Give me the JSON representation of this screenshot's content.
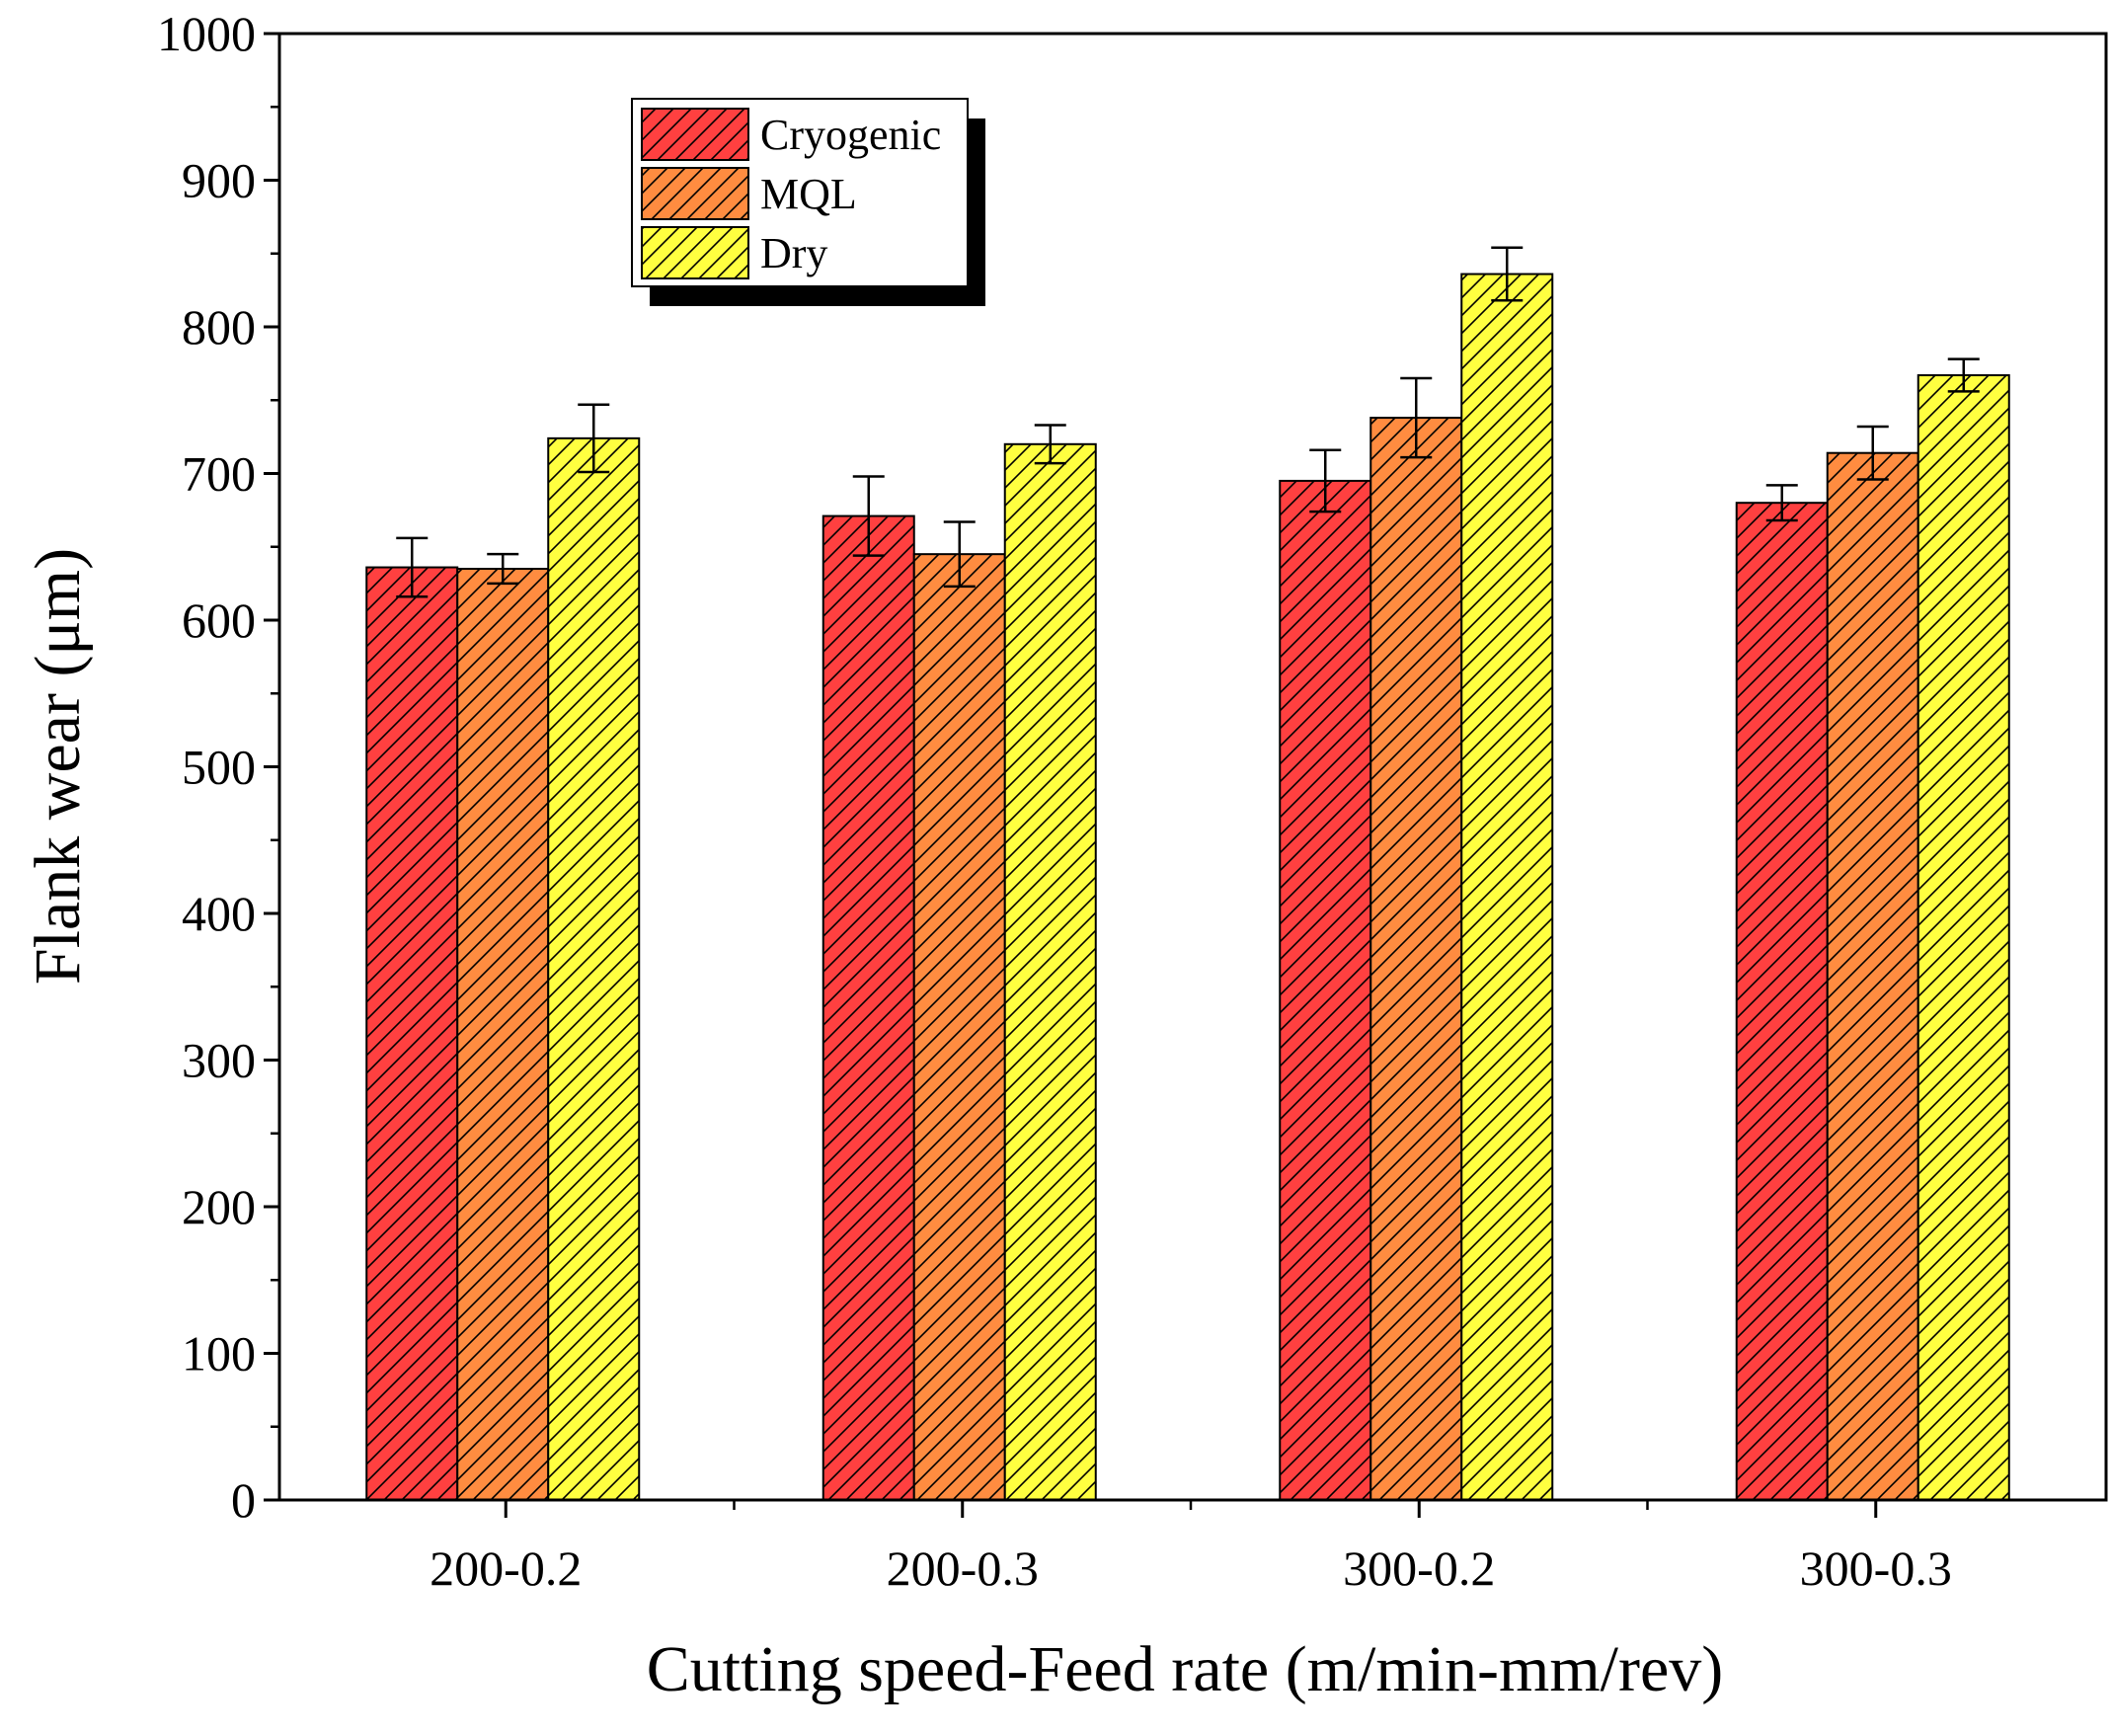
{
  "chart_data": {
    "type": "bar",
    "title": "",
    "xlabel": "Cutting speed-Feed rate (m/min-mm/rev)",
    "ylabel": "Flank wear (μm)",
    "ylim": [
      0,
      1000
    ],
    "yticks": [
      0,
      100,
      200,
      300,
      400,
      500,
      600,
      700,
      800,
      900,
      1000
    ],
    "ytick_labels": [
      "0",
      "100",
      "200",
      "300",
      "400",
      "500",
      "600",
      "700",
      "800",
      "900",
      "1000"
    ],
    "categories": [
      "200-0.2",
      "200-0.3",
      "300-0.2",
      "300-0.3"
    ],
    "series": [
      {
        "name": "Cryogenic",
        "color": "#ff4040",
        "values": [
          636,
          671,
          695,
          680
        ],
        "errors": [
          20,
          27,
          21,
          12
        ]
      },
      {
        "name": "MQL",
        "color": "#ff8c40",
        "values": [
          635,
          645,
          738,
          714
        ],
        "errors": [
          10,
          22,
          27,
          18
        ]
      },
      {
        "name": "Dry",
        "color": "#ffff40",
        "values": [
          724,
          720,
          836,
          767
        ],
        "errors": [
          23,
          13,
          18,
          11
        ]
      }
    ],
    "legend_position": "top-left",
    "grid": false,
    "hatch": "diagonal"
  }
}
